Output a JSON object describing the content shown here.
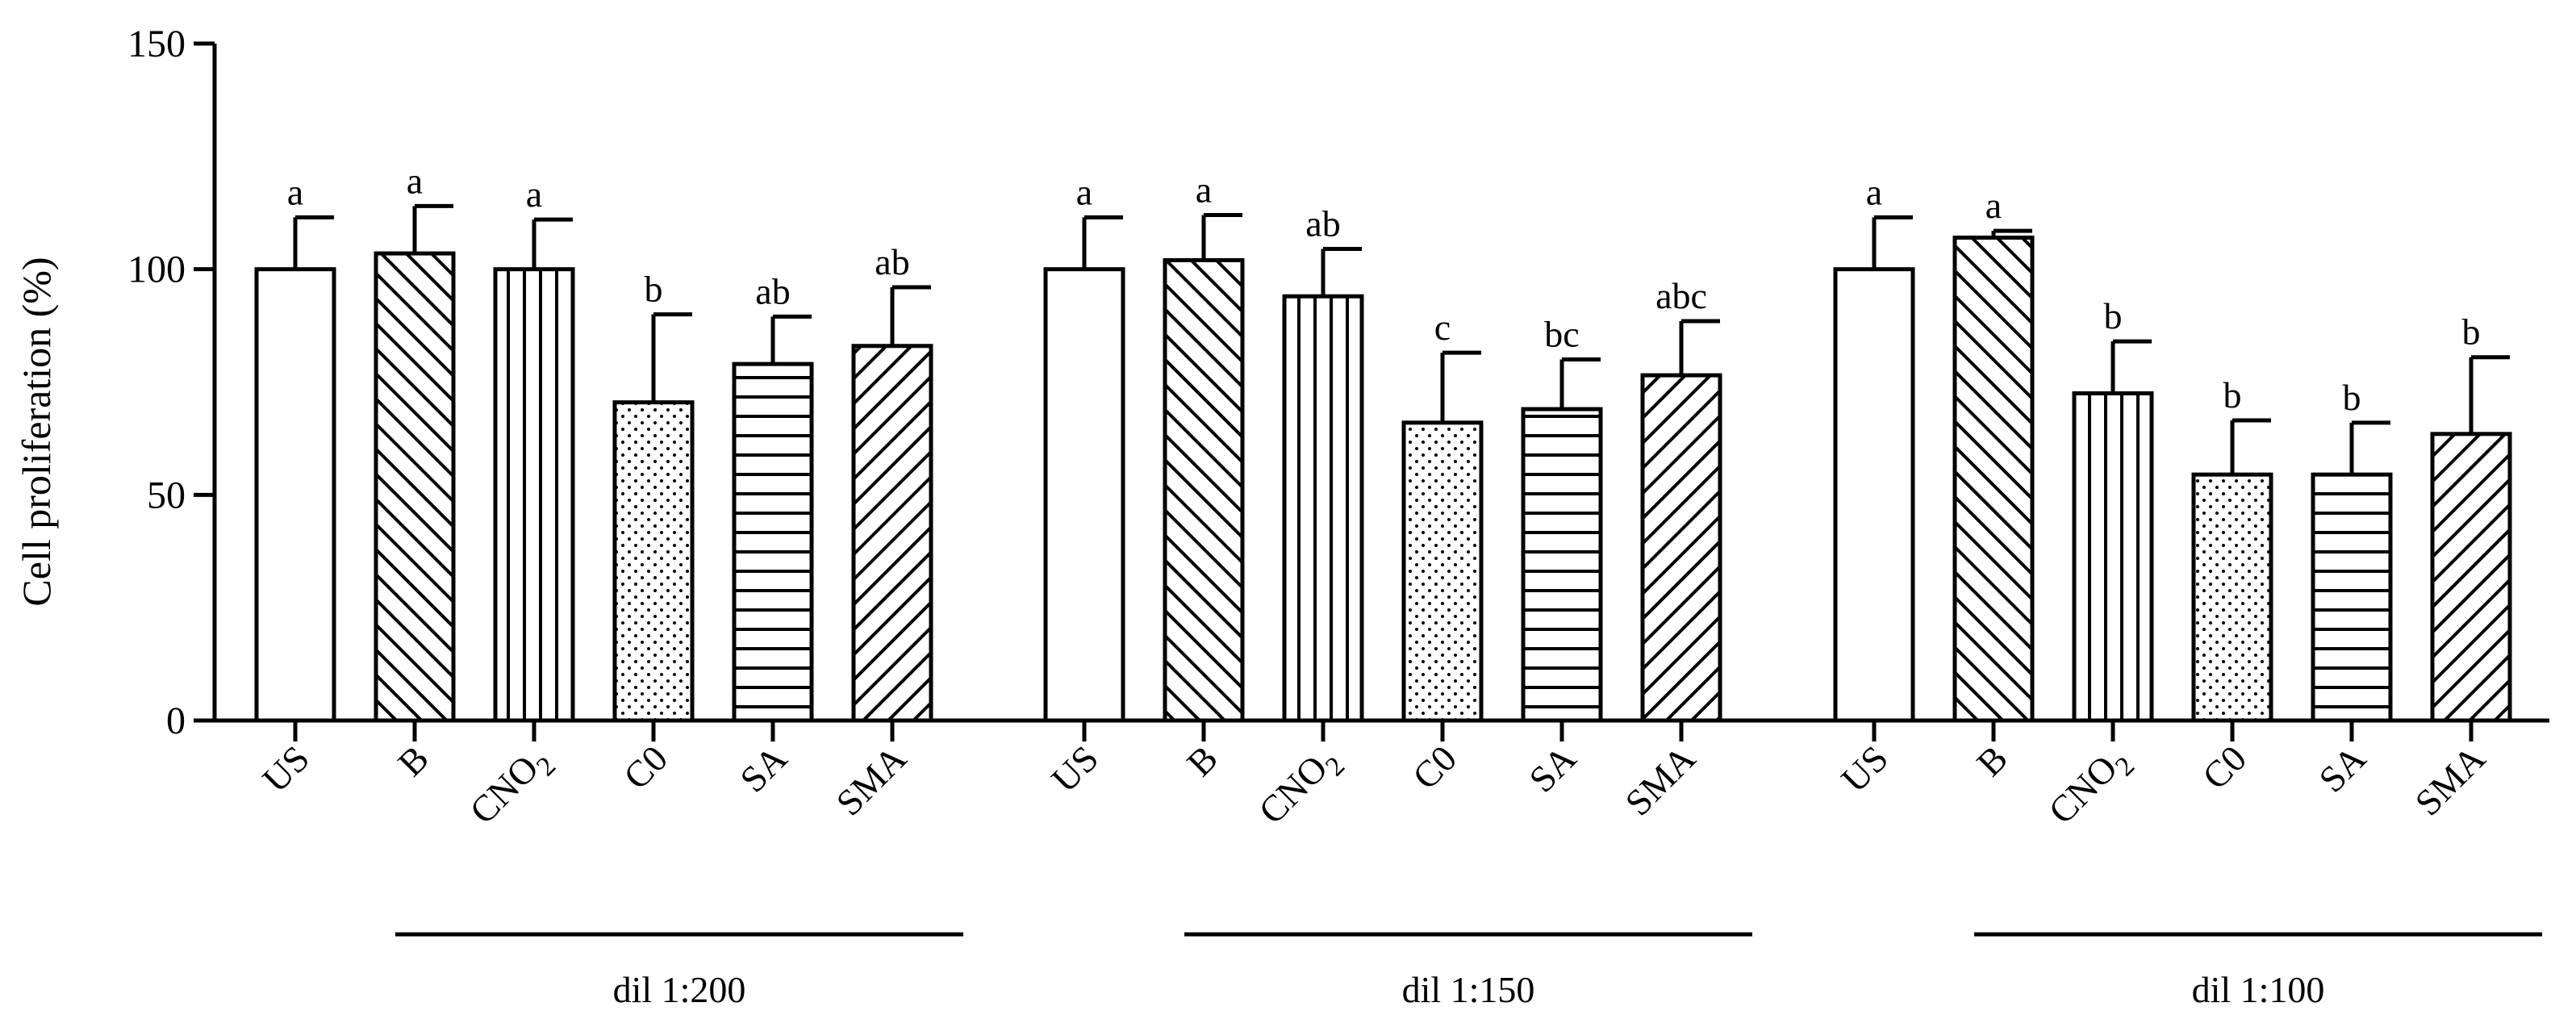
{
  "chart_data": {
    "type": "bar",
    "ylabel": "Cell proliferation (%)",
    "xlabel": "",
    "ylim": [
      0,
      150
    ],
    "yticks": [
      0,
      50,
      100,
      150
    ],
    "grid": false,
    "categories": [
      "US",
      "B",
      "CNO",
      "C0",
      "SA",
      "SMA"
    ],
    "category_subscripts": [
      "",
      "",
      "2",
      "",
      "",
      ""
    ],
    "patterns": [
      "empty",
      "diag-back",
      "vertical",
      "dots",
      "horizontal",
      "diag-fwd"
    ],
    "groups": [
      {
        "name": "dil 1:200",
        "values": [
          100,
          103.5,
          100,
          70.5,
          79,
          83
        ],
        "errors": [
          11.5,
          10.5,
          11,
          19.5,
          10.5,
          13
        ],
        "letters": [
          "a",
          "a",
          "a",
          "b",
          "ab",
          "ab"
        ]
      },
      {
        "name": "dil 1:150",
        "values": [
          100,
          102,
          94,
          66,
          69,
          76.5
        ],
        "errors": [
          11.5,
          10,
          10.5,
          15.5,
          11,
          12
        ],
        "letters": [
          "a",
          "a",
          "ab",
          "c",
          "bc",
          "abc"
        ]
      },
      {
        "name": "dil 1:100",
        "values": [
          100,
          107,
          72.5,
          54.5,
          54.5,
          63.5
        ],
        "errors": [
          11.5,
          1.5,
          11.5,
          12,
          11.5,
          17
        ],
        "letters": [
          "a",
          "a",
          "b",
          "b",
          "b",
          "b"
        ]
      }
    ]
  }
}
